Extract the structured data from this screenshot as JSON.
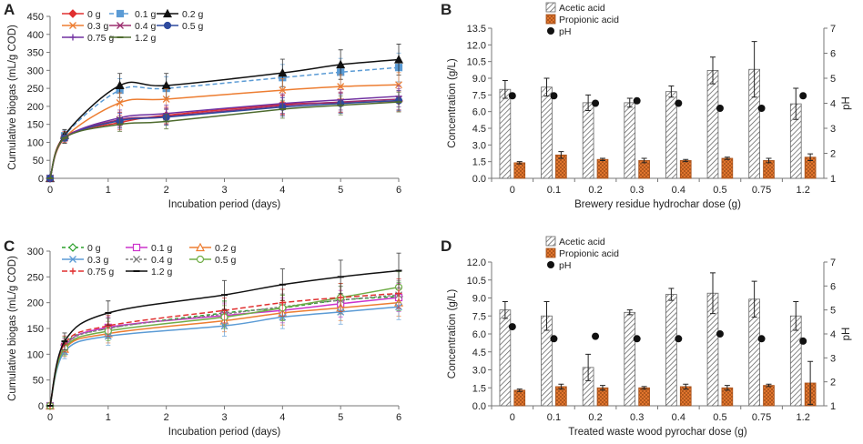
{
  "panels": {
    "A": "A",
    "B": "B",
    "C": "C",
    "D": "D"
  },
  "chart_data": [
    {
      "id": "A",
      "type": "line",
      "xlabel": "Incubation period (days)",
      "ylabel": "Cumulative biogas (mL/g COD)",
      "xlim": [
        0,
        6
      ],
      "ylim": [
        0,
        450
      ],
      "xticks": [
        0,
        1,
        2,
        3,
        4,
        5,
        6
      ],
      "yticks": [
        0,
        50,
        100,
        150,
        200,
        250,
        300,
        350,
        400,
        450
      ],
      "x": [
        0,
        0.25,
        1.2,
        2,
        4,
        5,
        6
      ],
      "series": [
        {
          "name": "0 g",
          "color": "#e03030",
          "marker": "diamond",
          "dash": "",
          "values": [
            0,
            115,
            155,
            175,
            205,
            210,
            215
          ]
        },
        {
          "name": "0.1 g",
          "color": "#5b9bd5",
          "marker": "square",
          "dash": "5,3",
          "values": [
            0,
            118,
            245,
            250,
            280,
            295,
            308
          ]
        },
        {
          "name": "0.2 g",
          "color": "#111111",
          "marker": "triangle",
          "dash": "",
          "values": [
            0,
            120,
            258,
            258,
            293,
            316,
            330
          ]
        },
        {
          "name": "0.3 g",
          "color": "#ed7d31",
          "marker": "x",
          "dash": "",
          "values": [
            0,
            112,
            210,
            220,
            245,
            255,
            260
          ]
        },
        {
          "name": "0.4 g",
          "color": "#9b2d6e",
          "marker": "x",
          "dash": "",
          "values": [
            0,
            112,
            163,
            172,
            202,
            212,
            220
          ]
        },
        {
          "name": "0.5 g",
          "color": "#2e4a9e",
          "marker": "circle",
          "dash": "",
          "values": [
            0,
            112,
            160,
            170,
            198,
            208,
            216
          ]
        },
        {
          "name": "0.75 g",
          "color": "#7030a0",
          "marker": "plus",
          "dash": "",
          "values": [
            0,
            112,
            168,
            180,
            208,
            218,
            228
          ]
        },
        {
          "name": "1.2 g",
          "color": "#4e6b2e",
          "marker": "dash",
          "dash": "",
          "values": [
            0,
            112,
            150,
            158,
            192,
            203,
            212
          ]
        }
      ]
    },
    {
      "id": "B",
      "type": "bar",
      "title": "",
      "xlabel": "Brewery residue hydrochar dose (g)",
      "ylabel": "Concentration (g/L)",
      "y2label": "pH",
      "categories": [
        "0",
        "0.1",
        "0.2",
        "0.3",
        "0.4",
        "0.5",
        "0.75",
        "1.2"
      ],
      "ylim": [
        0,
        13.5
      ],
      "yticks": [
        "0.0",
        "1.5",
        "3.0",
        "4.5",
        "6.0",
        "7.5",
        "9.0",
        "10.5",
        "12.0",
        "13.5"
      ],
      "y2lim": [
        1,
        7
      ],
      "y2ticks": [
        "1",
        "2",
        "3",
        "4",
        "5",
        "6",
        "7"
      ],
      "series": [
        {
          "name": "Acetic acid",
          "values": [
            8.0,
            8.2,
            6.8,
            6.8,
            7.8,
            9.7,
            9.8,
            6.7
          ],
          "errors": [
            0.8,
            0.8,
            0.7,
            0.4,
            0.5,
            1.2,
            2.5,
            1.4
          ]
        },
        {
          "name": "Propionic acid",
          "values": [
            1.4,
            2.1,
            1.7,
            1.6,
            1.6,
            1.8,
            1.6,
            1.9
          ],
          "errors": [
            0.1,
            0.3,
            0.1,
            0.2,
            0.1,
            0.1,
            0.2,
            0.3
          ]
        },
        {
          "name": "pH",
          "axis": "right",
          "values": [
            4.3,
            4.3,
            4.0,
            4.1,
            4.0,
            3.8,
            3.8,
            4.3
          ]
        }
      ]
    },
    {
      "id": "C",
      "type": "line",
      "xlabel": "Incubation period (days)",
      "ylabel": "Cumulative biogas (mL/g COD)",
      "xlim": [
        0,
        6
      ],
      "ylim": [
        0,
        300
      ],
      "xticks": [
        0,
        1,
        2,
        3,
        4,
        5,
        6
      ],
      "yticks": [
        0,
        50,
        100,
        150,
        200,
        250,
        300
      ],
      "x": [
        0,
        0.25,
        1,
        3,
        4,
        5,
        6
      ],
      "series": [
        {
          "name": "0 g",
          "color": "#2ca02c",
          "marker": "diamond-open",
          "dash": "4,3",
          "values": [
            0,
            118,
            150,
            180,
            190,
            205,
            212
          ]
        },
        {
          "name": "0.1 g",
          "color": "#cc33cc",
          "marker": "square-open",
          "dash": "",
          "values": [
            0,
            115,
            152,
            175,
            185,
            198,
            210
          ]
        },
        {
          "name": "0.2 g",
          "color": "#ed7d31",
          "marker": "triangle-open",
          "dash": "",
          "values": [
            0,
            110,
            140,
            165,
            180,
            190,
            200
          ]
        },
        {
          "name": "0.3 g",
          "color": "#5b9bd5",
          "marker": "x",
          "dash": "",
          "values": [
            0,
            105,
            135,
            155,
            172,
            182,
            192
          ]
        },
        {
          "name": "0.4 g",
          "color": "#7f7f7f",
          "marker": "x",
          "dash": "3,2",
          "values": [
            0,
            115,
            150,
            178,
            192,
            205,
            215
          ]
        },
        {
          "name": "0.5 g",
          "color": "#70ad47",
          "marker": "circle-open",
          "dash": "",
          "values": [
            0,
            112,
            145,
            172,
            190,
            210,
            230
          ]
        },
        {
          "name": "0.75 g",
          "color": "#e03030",
          "marker": "plus",
          "dash": "6,3",
          "values": [
            0,
            120,
            155,
            185,
            200,
            210,
            218
          ]
        },
        {
          "name": "1.2 g",
          "color": "#111111",
          "marker": "dash",
          "dash": "",
          "values": [
            0,
            125,
            180,
            215,
            235,
            250,
            262
          ]
        }
      ]
    },
    {
      "id": "D",
      "type": "bar",
      "xlabel": "Treated waste wood pyrochar dose (g)",
      "ylabel": "Concentration (g/L)",
      "y2label": "pH",
      "categories": [
        "0",
        "0.1",
        "0.2",
        "0.3",
        "0.4",
        "0.5",
        "0.75",
        "1.2"
      ],
      "ylim": [
        0,
        12
      ],
      "yticks": [
        "0.0",
        "1.5",
        "3.0",
        "4.5",
        "6.0",
        "7.5",
        "9.0",
        "10.5",
        "12.0"
      ],
      "y2lim": [
        1,
        7
      ],
      "y2ticks": [
        "1",
        "2",
        "3",
        "4",
        "5",
        "6",
        "7"
      ],
      "series": [
        {
          "name": "Acetic acid",
          "values": [
            8.0,
            7.5,
            3.2,
            7.8,
            9.3,
            9.4,
            8.9,
            7.5
          ],
          "errors": [
            0.7,
            1.2,
            1.1,
            0.2,
            0.5,
            1.7,
            1.5,
            1.2
          ]
        },
        {
          "name": "Propionic acid",
          "values": [
            1.3,
            1.6,
            1.5,
            1.5,
            1.6,
            1.5,
            1.7,
            1.9
          ],
          "errors": [
            0.1,
            0.2,
            0.2,
            0.1,
            0.2,
            0.2,
            0.1,
            1.8
          ]
        },
        {
          "name": "pH",
          "axis": "right",
          "values": [
            4.3,
            3.8,
            3.9,
            3.8,
            3.8,
            4.0,
            3.8,
            3.7
          ]
        }
      ]
    }
  ]
}
